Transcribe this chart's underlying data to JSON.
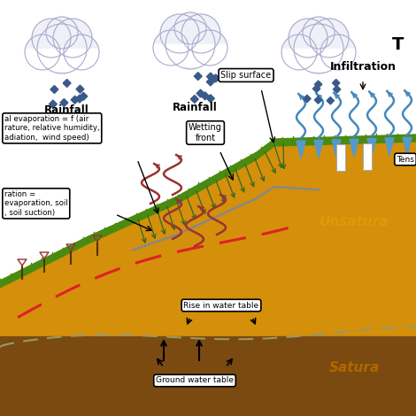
{
  "background_color": "#ffffff",
  "slope_color": "#d4900a",
  "slope_dark": "#9a6010",
  "bottom_layer_color": "#7a4a10",
  "grass_color": "#4a8a10",
  "cloud_fill": "#f0f0f8",
  "cloud_edge": "#aaaacc",
  "rain_color": "#3a5a8a",
  "dashed_red": "#dd2222",
  "infiltration_color": "#4488bb",
  "evap_color": "#993333",
  "text_unsaturated": "#e0980c",
  "text_saturated": "#b06800",
  "gw_line_color": "#999966",
  "arrow_color": "#222222",
  "flow_arrow_color": "#336622",
  "gray_line_color": "#777777",
  "tension_fill": "#ffffff",
  "label_evap1": "al evaporation = f (air\nrature, relative humidity,\nadiation,  wind speed)",
  "label_evap2": "ration =\nevaporation, soil\n, soil suction)",
  "label_slip": "Slip surface",
  "label_wetting": "Wetting\nfront",
  "label_infiltration": "Infiltration",
  "label_rise": "Rise in water table",
  "label_gw": "Ground water table",
  "label_unsatura": "Unsatura",
  "label_satura": "Satura",
  "label_tens": "Tens",
  "label_T": "T",
  "rainfall1": "Rainfall",
  "rainfall2": "Rainfall"
}
